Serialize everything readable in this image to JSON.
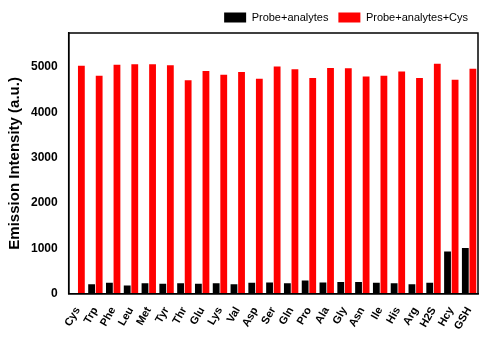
{
  "chart_data": {
    "type": "bar",
    "y_label": "Emission Intensity (a.u.)",
    "categories": [
      "Cys",
      "Trp",
      "Phe",
      "Leu",
      "Met",
      "Tyr",
      "Thr",
      "Glu",
      "Lys",
      "Val",
      "Asp",
      "Ser",
      "Gln",
      "Pro",
      "Ala",
      "Gly",
      "Asn",
      "Ile",
      "His",
      "Arg",
      "H2S",
      "Hcy",
      "GSH"
    ],
    "series": [
      {
        "name": "Probe+analytes",
        "color": "#000000",
        "values": [
          null,
          210,
          240,
          180,
          230,
          220,
          230,
          220,
          230,
          210,
          240,
          250,
          230,
          290,
          250,
          260,
          260,
          240,
          230,
          210,
          240,
          930,
          1010
        ]
      },
      {
        "name": "Probe+analytes+Cys",
        "color": "#ff0000",
        "values": [
          5030,
          4810,
          5050,
          5060,
          5060,
          5040,
          4710,
          4910,
          4830,
          4890,
          4740,
          5010,
          4950,
          4760,
          4980,
          4970,
          4790,
          4810,
          4900,
          4760,
          5070,
          4720,
          4960
        ]
      }
    ],
    "ylim": [
      0,
      5750
    ],
    "yticks": [
      0,
      1000,
      2000,
      3000,
      4000,
      5000
    ],
    "grid": false,
    "legend": "upper right"
  }
}
